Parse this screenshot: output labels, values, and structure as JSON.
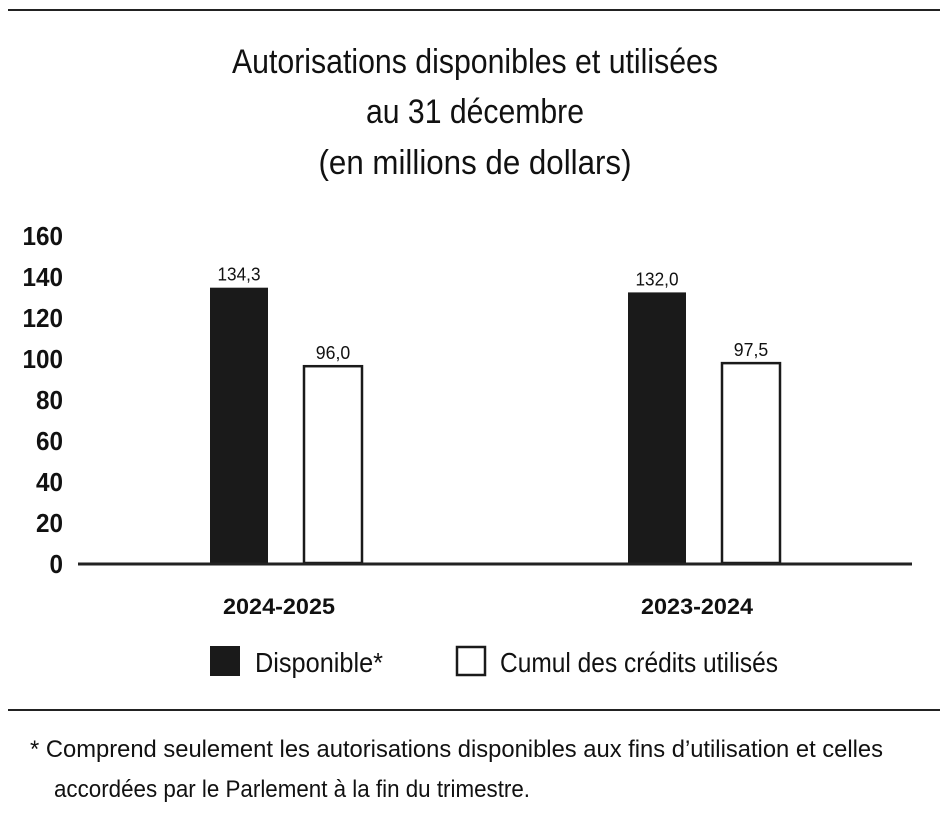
{
  "chart_data": {
    "type": "bar",
    "title": [
      "Autorisations disponibles et utilisées",
      "au 31 décembre",
      "(en millions de dollars)"
    ],
    "categories": [
      "2024-2025",
      "2023-2024"
    ],
    "series": [
      {
        "name": "Disponible*",
        "values": [
          134.3,
          132.0
        ],
        "labels": [
          "134,3",
          "132,0"
        ],
        "color": "#1a1a1a"
      },
      {
        "name": "Cumul des crédits utilisés",
        "values": [
          96.0,
          97.5
        ],
        "labels": [
          "96,0",
          "97,5"
        ],
        "color": "#ffffff"
      }
    ],
    "ylim": [
      0,
      160
    ],
    "yticks": [
      "0",
      "20",
      "40",
      "60",
      "80",
      "100",
      "120",
      "140",
      "160"
    ],
    "grid": false,
    "legend": "bottom",
    "xlabel": "",
    "ylabel": ""
  },
  "footnote": {
    "line1": "* Comprend seulement les autorisations disponibles aux fins d’utilisation et celles",
    "line2": "accordées par le Parlement à la fin du trimestre."
  }
}
